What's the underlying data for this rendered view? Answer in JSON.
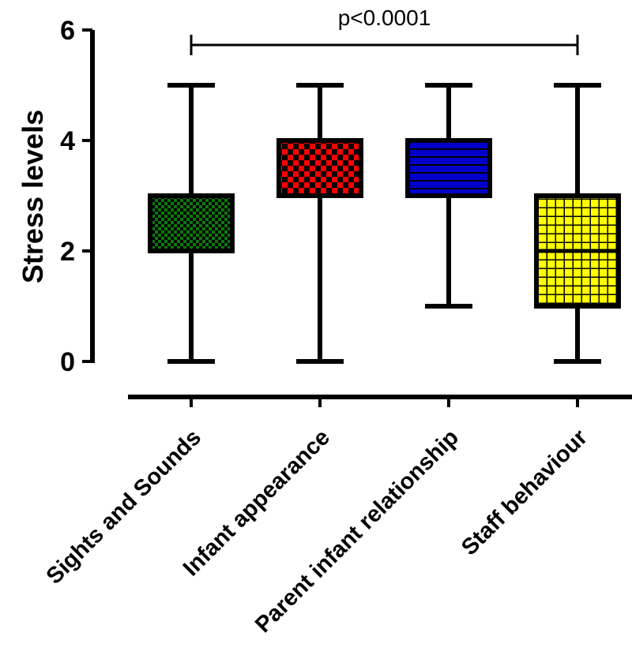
{
  "chart_data": {
    "type": "box",
    "title": "",
    "xlabel": "",
    "ylabel": "Stress levels",
    "ylim": [
      0,
      6
    ],
    "yticks": [
      "0",
      "2",
      "4",
      "6"
    ],
    "categories": [
      "Sights and Sounds",
      "Infant appearance",
      "Parent infant relationship",
      "Staff behaviour"
    ],
    "boxes": [
      {
        "category": "Sights and Sounds",
        "min": 0,
        "q1": 2,
        "median": 3,
        "q3": 3,
        "max": 5,
        "color": "#0a7a0a",
        "pattern": "checker"
      },
      {
        "category": "Infant appearance",
        "min": 0,
        "q1": 3,
        "median": 4,
        "q3": 4,
        "max": 5,
        "color": "#ff0000",
        "pattern": "checker-large"
      },
      {
        "category": "Parent infant relationship",
        "min": 1,
        "q1": 3,
        "median": 4,
        "q3": 4,
        "max": 5,
        "color": "#0000cc",
        "pattern": "horizontal-lines"
      },
      {
        "category": "Staff behaviour",
        "min": 0,
        "q1": 1,
        "median": 2,
        "q3": 3,
        "max": 5,
        "color": "#ffff00",
        "pattern": "grid"
      }
    ],
    "annotation": {
      "text": "p<0.0001",
      "from": "Sights and Sounds",
      "to": "Staff behaviour",
      "y": 5.7
    },
    "grid": false,
    "legend": "none"
  }
}
